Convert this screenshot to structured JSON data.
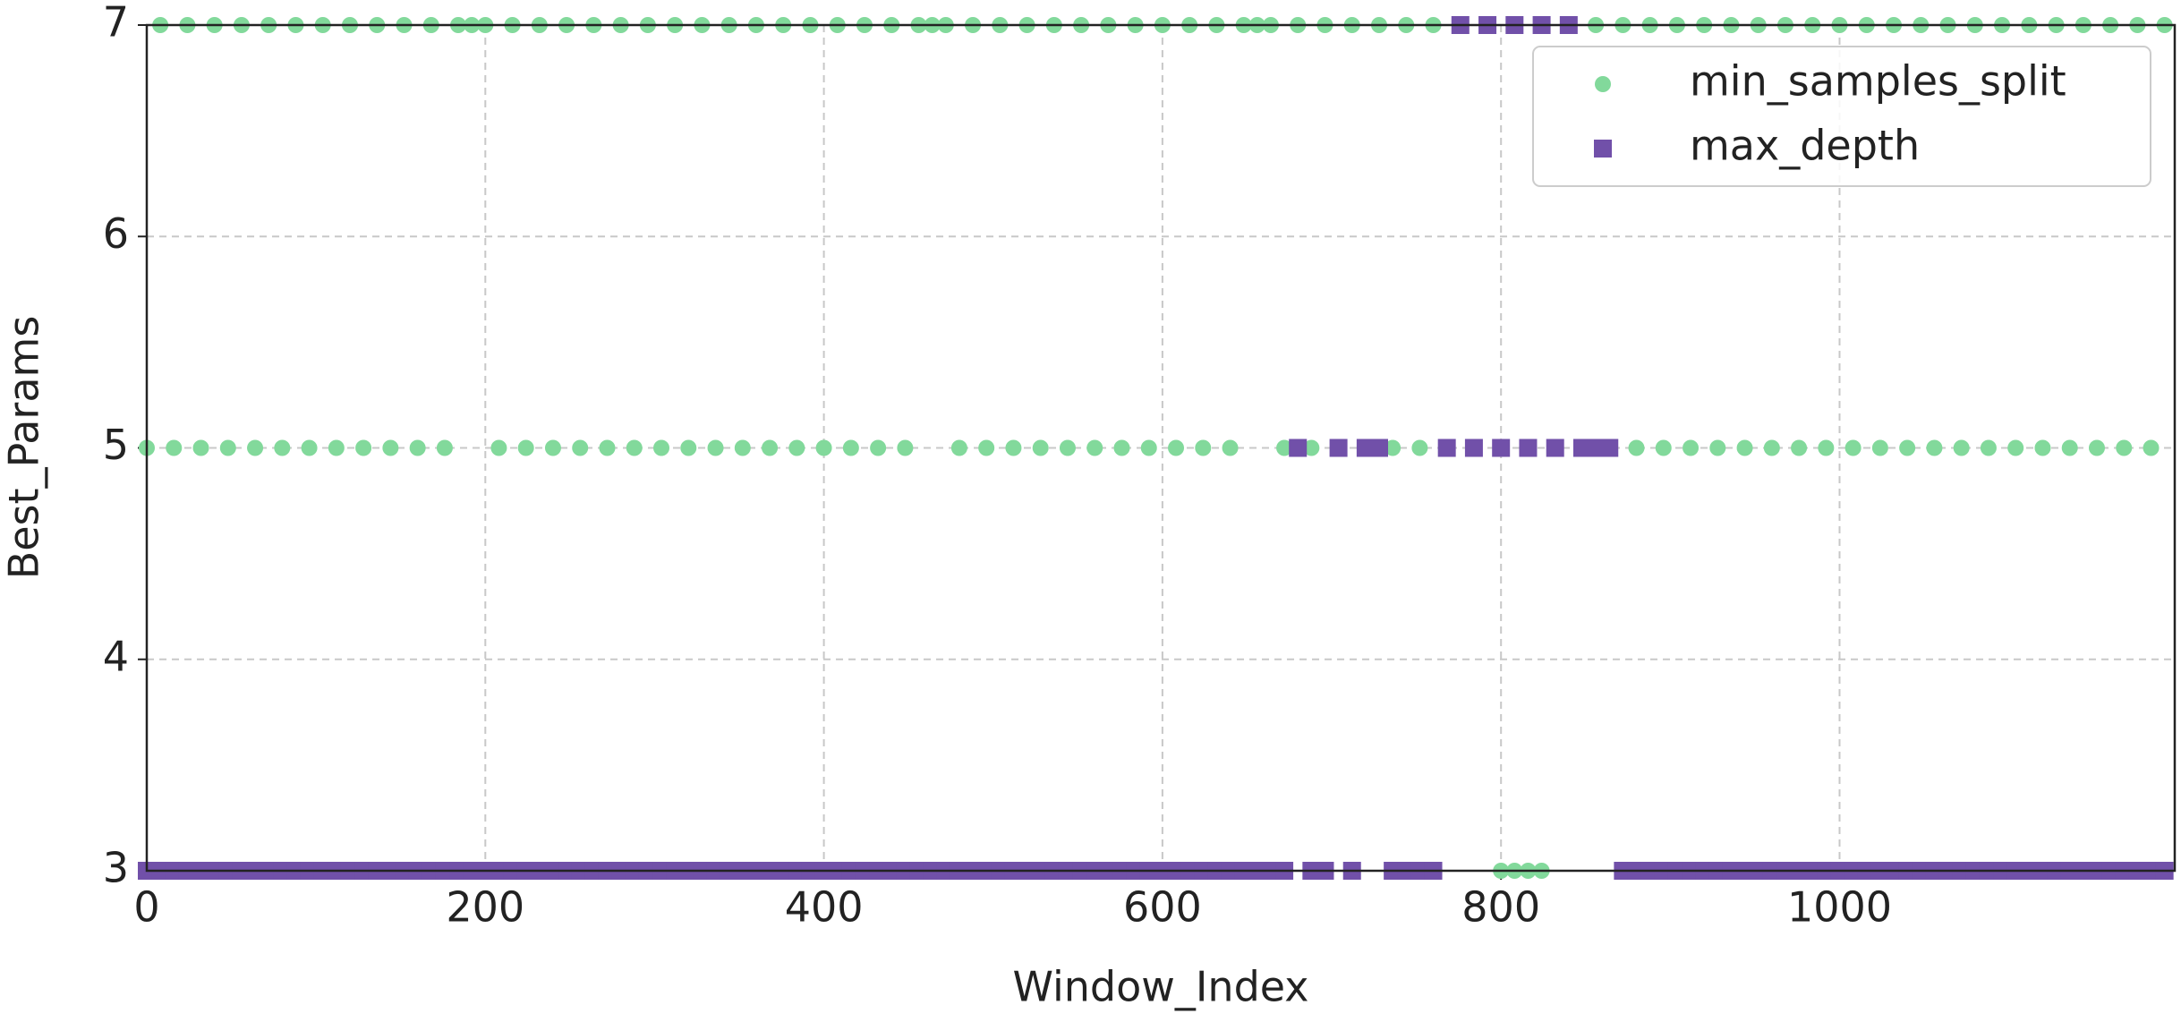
{
  "chart_data": {
    "type": "scatter",
    "xlabel": "Window_Index",
    "ylabel": "Best_Params",
    "xlim": [
      0,
      1198
    ],
    "ylim": [
      3,
      7
    ],
    "xticks": [
      0,
      200,
      400,
      600,
      800,
      1000
    ],
    "yticks": [
      3,
      4,
      5,
      6,
      7
    ],
    "grid": true,
    "legend": "upper right",
    "x": [
      0,
      8,
      16,
      24,
      32,
      40,
      48,
      56,
      64,
      72,
      80,
      88,
      96,
      104,
      112,
      120,
      128,
      136,
      144,
      152,
      160,
      168,
      176,
      184,
      192,
      200,
      208,
      216,
      224,
      232,
      240,
      248,
      256,
      264,
      272,
      280,
      288,
      296,
      304,
      312,
      320,
      328,
      336,
      344,
      352,
      360,
      368,
      376,
      384,
      392,
      400,
      408,
      416,
      424,
      432,
      440,
      448,
      456,
      464,
      472,
      480,
      488,
      496,
      504,
      512,
      520,
      528,
      536,
      544,
      552,
      560,
      568,
      576,
      584,
      592,
      600,
      608,
      616,
      624,
      632,
      640,
      648,
      656,
      664,
      672,
      680,
      688,
      696,
      704,
      712,
      720,
      728,
      736,
      744,
      752,
      760,
      768,
      776,
      784,
      792,
      800,
      808,
      816,
      824,
      832,
      840,
      848,
      856,
      864,
      872,
      880,
      888,
      896,
      904,
      912,
      920,
      928,
      936,
      944,
      952,
      960,
      968,
      976,
      984,
      992,
      1000,
      1008,
      1016,
      1024,
      1032,
      1040,
      1048,
      1056,
      1064,
      1072,
      1080,
      1088,
      1096,
      1104,
      1112,
      1120,
      1128,
      1136,
      1144,
      1152,
      1160,
      1168,
      1176,
      1184,
      1192
    ],
    "series": [
      {
        "name": "min_samples_split",
        "color": "#82d99b",
        "marker": "circle",
        "values": [
          5,
          7,
          5,
          7,
          5,
          7,
          5,
          7,
          5,
          7,
          5,
          7,
          5,
          7,
          5,
          7,
          5,
          7,
          5,
          7,
          5,
          7,
          5,
          7,
          7,
          7,
          5,
          7,
          5,
          7,
          5,
          7,
          5,
          7,
          5,
          7,
          5,
          7,
          5,
          7,
          5,
          7,
          5,
          7,
          5,
          7,
          5,
          7,
          5,
          7,
          5,
          7,
          5,
          7,
          5,
          7,
          5,
          7,
          7,
          7,
          5,
          7,
          5,
          7,
          5,
          7,
          5,
          7,
          5,
          7,
          5,
          7,
          5,
          7,
          5,
          7,
          5,
          7,
          5,
          7,
          5,
          7,
          7,
          7,
          5,
          7,
          5,
          7,
          5,
          7,
          5,
          7,
          5,
          7,
          5,
          7,
          5,
          7,
          5,
          7,
          3,
          3,
          3,
          3,
          5,
          7,
          5,
          7,
          5,
          7,
          5,
          7,
          5,
          7,
          5,
          7,
          5,
          7,
          5,
          7,
          5,
          7,
          5,
          7,
          5,
          7,
          5,
          7,
          5,
          7,
          5,
          7,
          5,
          7,
          5,
          7,
          5,
          7,
          5,
          7,
          5,
          7,
          5,
          7,
          5,
          7,
          5,
          7,
          5,
          7
        ]
      },
      {
        "name": "max_depth",
        "color": "#7150a9",
        "marker": "square",
        "values": [
          3,
          3,
          3,
          3,
          3,
          3,
          3,
          3,
          3,
          3,
          3,
          3,
          3,
          3,
          3,
          3,
          3,
          3,
          3,
          3,
          3,
          3,
          3,
          3,
          3,
          3,
          3,
          3,
          3,
          3,
          3,
          3,
          3,
          3,
          3,
          3,
          3,
          3,
          3,
          3,
          3,
          3,
          3,
          3,
          3,
          3,
          3,
          3,
          3,
          3,
          3,
          3,
          3,
          3,
          3,
          3,
          3,
          3,
          3,
          3,
          3,
          3,
          3,
          3,
          3,
          3,
          3,
          3,
          3,
          3,
          3,
          3,
          3,
          3,
          3,
          3,
          3,
          3,
          3,
          3,
          3,
          3,
          3,
          3,
          3,
          5,
          3,
          3,
          5,
          3,
          5,
          5,
          3,
          3,
          3,
          3,
          5,
          7,
          5,
          7,
          5,
          7,
          5,
          7,
          5,
          7,
          5,
          5,
          5,
          3,
          3,
          3,
          3,
          3,
          3,
          3,
          3,
          3,
          3,
          3,
          3,
          3,
          3,
          3,
          3,
          3,
          3,
          3,
          3,
          3,
          3,
          3,
          3,
          3,
          3,
          3,
          3,
          3,
          3,
          3,
          3,
          3,
          3,
          3,
          3,
          3,
          3,
          3,
          3,
          3
        ]
      }
    ]
  }
}
